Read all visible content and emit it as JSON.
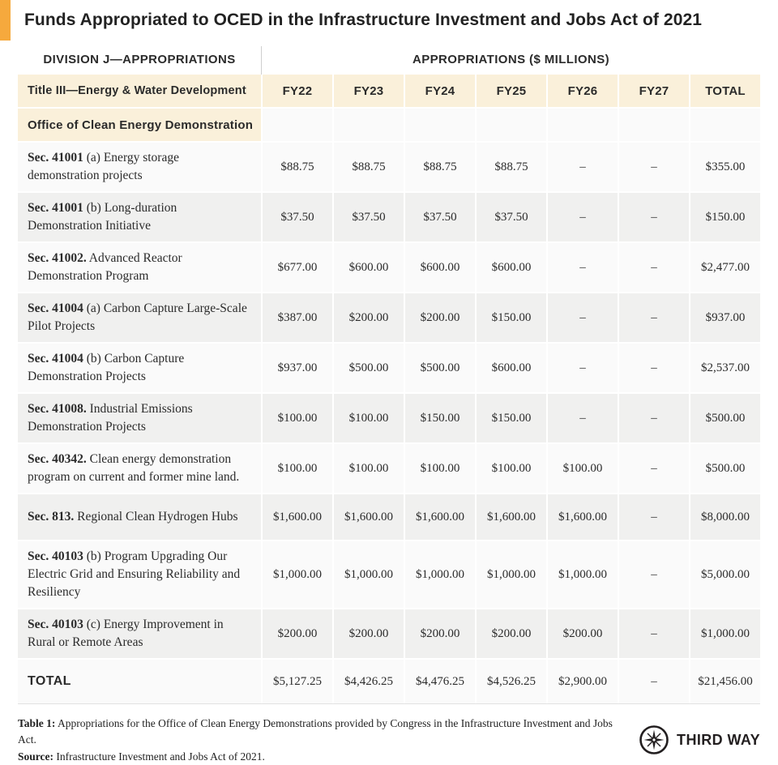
{
  "title": "Funds Appropriated to OCED in the Infrastructure Investment and Jobs Act of 2021",
  "colors": {
    "accent_orange": "#F6A93D",
    "header_cream": "#FAF0DA",
    "row_light": "#FAFAFA",
    "row_gray": "#F0F0EF",
    "text_dark": "#2B2B2B"
  },
  "table": {
    "group_header_left": "DIVISION J—APPROPRIATIONS",
    "group_header_right": "APPROPRIATIONS ($ MILLIONS)",
    "columns": [
      "Title III—Energy & Water Development",
      "FY22",
      "FY23",
      "FY24",
      "FY25",
      "FY26",
      "FY27",
      "TOTAL"
    ],
    "section_row_label": "Office of Clean Energy Demonstration",
    "rows": [
      {
        "label_bold": "Sec. 41001",
        "label_rest": " (a) Energy storage demonstration projects",
        "values": [
          "$88.75",
          "$88.75",
          "$88.75",
          "$88.75",
          "–",
          "–",
          "$355.00"
        ]
      },
      {
        "label_bold": "Sec. 41001",
        "label_rest": " (b) Long-duration Demonstration Initiative",
        "values": [
          "$37.50",
          "$37.50",
          "$37.50",
          "$37.50",
          "–",
          "–",
          "$150.00"
        ]
      },
      {
        "label_bold": "Sec. 41002.",
        "label_rest": " Advanced Reactor Demonstration Program",
        "values": [
          "$677.00",
          "$600.00",
          "$600.00",
          "$600.00",
          "–",
          "–",
          "$2,477.00"
        ]
      },
      {
        "label_bold": "Sec. 41004",
        "label_rest": " (a) Carbon Capture Large-Scale Pilot Projects",
        "values": [
          "$387.00",
          "$200.00",
          "$200.00",
          "$150.00",
          "–",
          "–",
          "$937.00"
        ]
      },
      {
        "label_bold": "Sec. 41004",
        "label_rest": " (b) Carbon Capture Demonstration Projects",
        "values": [
          "$937.00",
          "$500.00",
          "$500.00",
          "$600.00",
          "–",
          "–",
          "$2,537.00"
        ]
      },
      {
        "label_bold": "Sec. 41008.",
        "label_rest": " Industrial Emissions Demonstration Projects",
        "values": [
          "$100.00",
          "$100.00",
          "$150.00",
          "$150.00",
          "–",
          "–",
          "$500.00"
        ]
      },
      {
        "label_bold": "Sec. 40342.",
        "label_rest": " Clean energy demonstration program on current and former mine land.",
        "values": [
          "$100.00",
          "$100.00",
          "$100.00",
          "$100.00",
          "$100.00",
          "–",
          "$500.00"
        ]
      },
      {
        "label_bold": "Sec. 813.",
        "label_rest": " Regional Clean Hydrogen Hubs",
        "values": [
          "$1,600.00",
          "$1,600.00",
          "$1,600.00",
          "$1,600.00",
          "$1,600.00",
          "–",
          "$8,000.00"
        ]
      },
      {
        "label_bold": "Sec. 40103",
        "label_rest": " (b) Program Upgrading Our Electric Grid and Ensuring Reliability and Resiliency",
        "values": [
          "$1,000.00",
          "$1,000.00",
          "$1,000.00",
          "$1,000.00",
          "$1,000.00",
          "–",
          "$5,000.00"
        ]
      },
      {
        "label_bold": "Sec. 40103",
        "label_rest": " (c) Energy Improvement in Rural or Remote Areas",
        "values": [
          "$200.00",
          "$200.00",
          "$200.00",
          "$200.00",
          "$200.00",
          "–",
          "$1,000.00"
        ]
      }
    ],
    "total_row": {
      "label": "TOTAL",
      "values": [
        "$5,127.25",
        "$4,426.25",
        "$4,476.25",
        "$4,526.25",
        "$2,900.00",
        "–",
        "$21,456.00"
      ]
    }
  },
  "footer": {
    "caption_bold": "Table 1:",
    "caption_rest": " Appropriations for the Office of Clean Energy Demonstrations provided by Congress in the Infrastructure Investment and Jobs Act.",
    "source_bold": "Source:",
    "source_rest": " Infrastructure Investment and Jobs Act of 2021.",
    "logo_text": "THIRD WAY",
    "logo_icon": "compass-star-icon"
  },
  "chart_data": {
    "type": "table",
    "title": "Funds Appropriated to OCED in the Infrastructure Investment and Jobs Act of 2021",
    "units": "$ millions",
    "columns": [
      "FY22",
      "FY23",
      "FY24",
      "FY25",
      "FY26",
      "FY27",
      "TOTAL"
    ],
    "section": "Office of Clean Energy Demonstration",
    "rows": [
      {
        "item": "Sec. 41001 (a) Energy storage demonstration projects",
        "values": [
          88.75,
          88.75,
          88.75,
          88.75,
          null,
          null,
          355.0
        ]
      },
      {
        "item": "Sec. 41001 (b) Long-duration Demonstration Initiative",
        "values": [
          37.5,
          37.5,
          37.5,
          37.5,
          null,
          null,
          150.0
        ]
      },
      {
        "item": "Sec. 41002. Advanced Reactor Demonstration Program",
        "values": [
          677.0,
          600.0,
          600.0,
          600.0,
          null,
          null,
          2477.0
        ]
      },
      {
        "item": "Sec. 41004 (a) Carbon Capture Large-Scale Pilot Projects",
        "values": [
          387.0,
          200.0,
          200.0,
          150.0,
          null,
          null,
          937.0
        ]
      },
      {
        "item": "Sec. 41004 (b) Carbon Capture Demonstration Projects",
        "values": [
          937.0,
          500.0,
          500.0,
          600.0,
          null,
          null,
          2537.0
        ]
      },
      {
        "item": "Sec. 41008. Industrial Emissions Demonstration Projects",
        "values": [
          100.0,
          100.0,
          150.0,
          150.0,
          null,
          null,
          500.0
        ]
      },
      {
        "item": "Sec. 40342. Clean energy demonstration program on current and former mine land.",
        "values": [
          100.0,
          100.0,
          100.0,
          100.0,
          100.0,
          null,
          500.0
        ]
      },
      {
        "item": "Sec. 813. Regional Clean Hydrogen Hubs",
        "values": [
          1600.0,
          1600.0,
          1600.0,
          1600.0,
          1600.0,
          null,
          8000.0
        ]
      },
      {
        "item": "Sec. 40103 (b) Program Upgrading Our Electric Grid and Ensuring Reliability and Resiliency",
        "values": [
          1000.0,
          1000.0,
          1000.0,
          1000.0,
          1000.0,
          null,
          5000.0
        ]
      },
      {
        "item": "Sec. 40103 (c) Energy Improvement in Rural or Remote Areas",
        "values": [
          200.0,
          200.0,
          200.0,
          200.0,
          200.0,
          null,
          1000.0
        ]
      }
    ],
    "total": {
      "item": "TOTAL",
      "values": [
        5127.25,
        4426.25,
        4476.25,
        4526.25,
        2900.0,
        null,
        21456.0
      ]
    }
  }
}
